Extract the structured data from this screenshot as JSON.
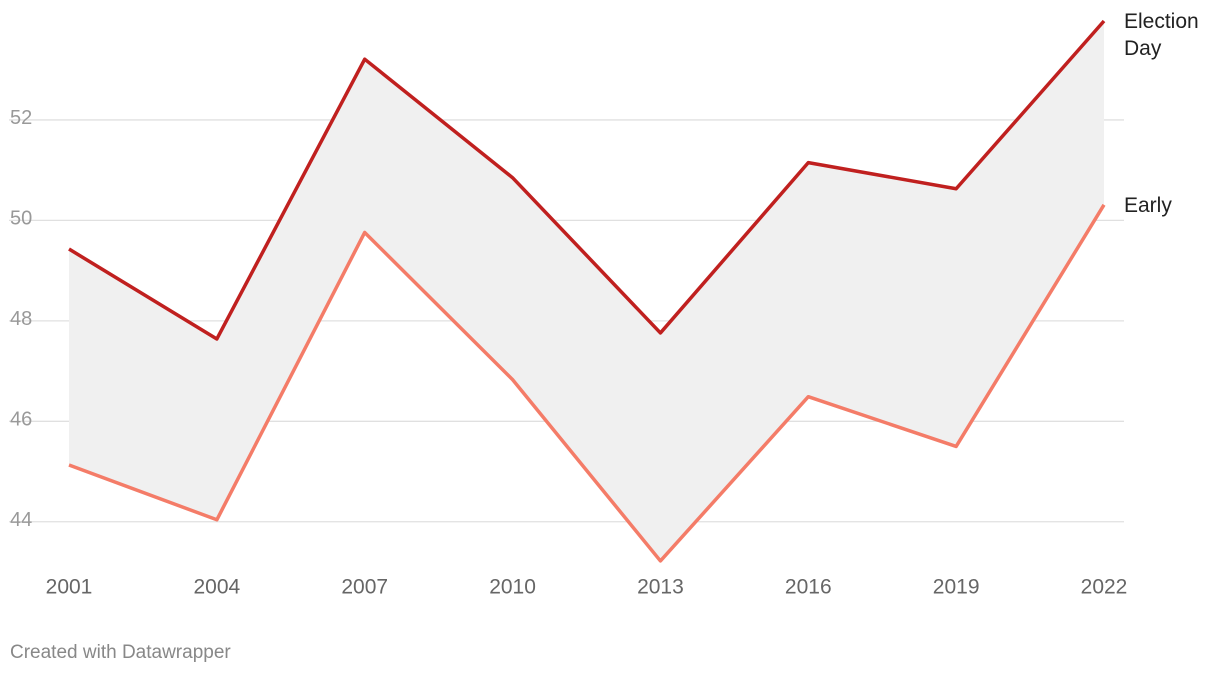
{
  "chart_data": {
    "type": "line",
    "x": [
      2001,
      2004,
      2007,
      2010,
      2013,
      2016,
      2019,
      2022
    ],
    "series": [
      {
        "name": "Election Day",
        "color": "#c0201f",
        "values": [
          49.43,
          47.64,
          53.21,
          50.85,
          47.76,
          51.15,
          50.63,
          53.97
        ]
      },
      {
        "name": "Early",
        "color": "#f47c68",
        "values": [
          45.13,
          44.04,
          49.76,
          46.83,
          43.22,
          46.49,
          45.5,
          50.31
        ]
      }
    ],
    "fill_between": "#f0f0f0",
    "xlim": [
      2001,
      2022
    ],
    "xticks": [
      2001,
      2004,
      2007,
      2010,
      2013,
      2016,
      2019,
      2022
    ],
    "ylim": [
      43,
      54
    ],
    "yticks": [
      44,
      46,
      48,
      50,
      52
    ],
    "grid": true,
    "footer": "Created with Datawrapper"
  }
}
